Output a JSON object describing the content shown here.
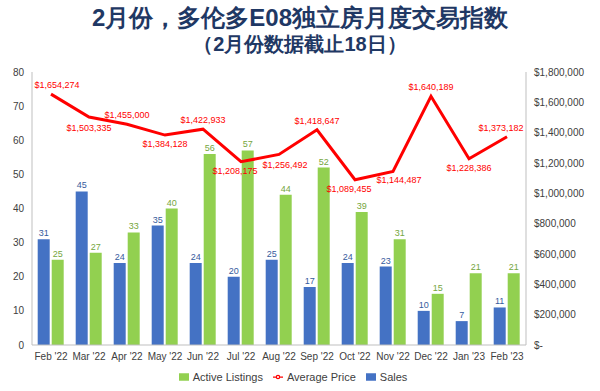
{
  "chart_data": {
    "type": "bar",
    "title": "2月份，多伦多E08独立房月度交易指数",
    "subtitle": "（2月份数据截止18日）",
    "categories": [
      "Feb '22",
      "Mar '22",
      "Apr '22",
      "May '22",
      "Jun '22",
      "Jul '22",
      "Aug '22",
      "Sep '22",
      "Oct '22",
      "Nov '22",
      "Dec '22",
      "Jan '23",
      "Feb '23"
    ],
    "series": [
      {
        "name": "Sales",
        "type": "bar",
        "color": "#4472c4",
        "values": [
          31,
          45,
          24,
          35,
          24,
          20,
          25,
          17,
          24,
          23,
          10,
          7,
          11
        ]
      },
      {
        "name": "Active Listings",
        "type": "bar",
        "color": "#92d050",
        "values": [
          25,
          27,
          33,
          40,
          56,
          57,
          44,
          52,
          39,
          31,
          15,
          21,
          21
        ]
      },
      {
        "name": "Average Price",
        "type": "line",
        "color": "#ff0000",
        "axis": "y2",
        "values": [
          1654274,
          1503335,
          1455000,
          1384128,
          1422933,
          1208175,
          1256492,
          1418647,
          1089455,
          1144487,
          1640189,
          1228386,
          1373182
        ],
        "value_labels": [
          "$1,654,274",
          "$1,503,335",
          "$1,455,000",
          "$1,384,128",
          "$1,422,933",
          "$1,208,175",
          "$1,256,492",
          "$1,418,647",
          "$1,089,455",
          "$1,144,487",
          "$1,640,189",
          "$1,228,386",
          "$1,373,182"
        ]
      }
    ],
    "ylim": [
      0,
      80
    ],
    "yticks": [
      0,
      10,
      20,
      30,
      40,
      50,
      60,
      70,
      80
    ],
    "y2lim": [
      0,
      1800000
    ],
    "y2ticks": [
      {
        "value": 0,
        "label": "$-"
      },
      {
        "value": 200000,
        "label": "$200,000"
      },
      {
        "value": 400000,
        "label": "$400,000"
      },
      {
        "value": 600000,
        "label": "$600,000"
      },
      {
        "value": 800000,
        "label": "$800,000"
      },
      {
        "value": 1000000,
        "label": "$1,000,000"
      },
      {
        "value": 1200000,
        "label": "$1,200,000"
      },
      {
        "value": 1400000,
        "label": "$1,400,000"
      },
      {
        "value": 1600000,
        "label": "$1,600,000"
      },
      {
        "value": 1800000,
        "label": "$1,800,000"
      }
    ],
    "grid": false,
    "legend": "bottom",
    "data_labels": true
  }
}
